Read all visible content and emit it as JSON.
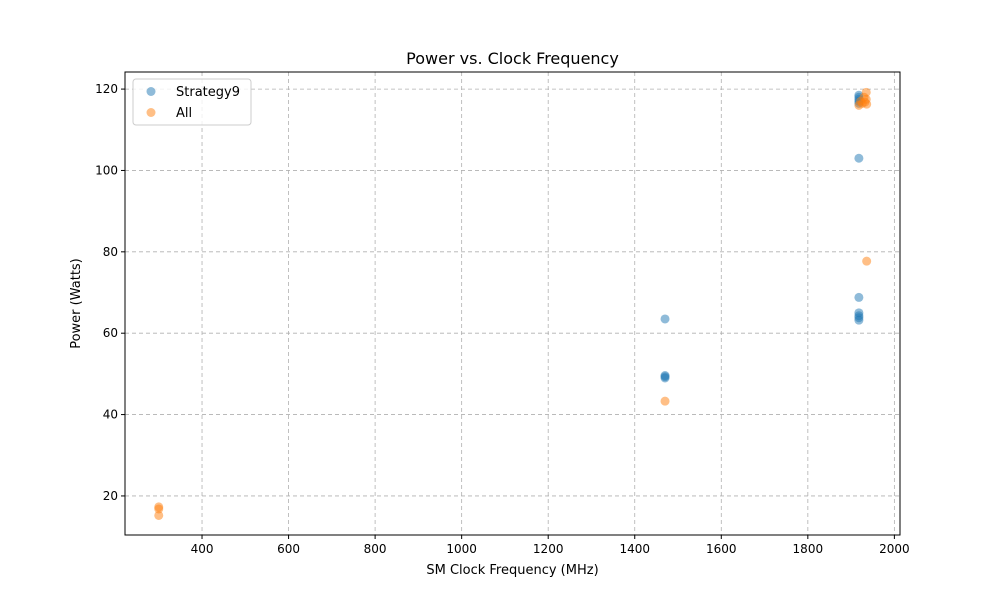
{
  "chart_data": {
    "type": "scatter",
    "title": "Power vs. Clock Frequency",
    "xlabel": "SM Clock Frequency (MHz)",
    "ylabel": "Power (Watts)",
    "xlim": [
      222,
      2013
    ],
    "ylim": [
      10.4,
      124.2
    ],
    "xticks": [
      400,
      600,
      800,
      1000,
      1200,
      1400,
      1600,
      1800,
      2000
    ],
    "yticks": [
      20,
      40,
      60,
      80,
      100,
      120
    ],
    "grid": true,
    "legend_position": "top-left",
    "series": [
      {
        "name": "Strategy9",
        "color": "#1f77b4",
        "points": [
          {
            "x": 1470,
            "y": 63.5
          },
          {
            "x": 1470,
            "y": 49.6
          },
          {
            "x": 1470,
            "y": 49.3
          },
          {
            "x": 1470,
            "y": 49.0
          },
          {
            "x": 1918,
            "y": 118.5
          },
          {
            "x": 1918,
            "y": 118.0
          },
          {
            "x": 1918,
            "y": 117.5
          },
          {
            "x": 1918,
            "y": 117.0
          },
          {
            "x": 1918,
            "y": 116.5
          },
          {
            "x": 1918,
            "y": 103.0
          },
          {
            "x": 1918,
            "y": 68.8
          },
          {
            "x": 1918,
            "y": 65.0
          },
          {
            "x": 1918,
            "y": 64.3
          },
          {
            "x": 1918,
            "y": 63.8
          },
          {
            "x": 1918,
            "y": 63.2
          }
        ]
      },
      {
        "name": "All",
        "color": "#ff7f0e",
        "points": [
          {
            "x": 300,
            "y": 17.3
          },
          {
            "x": 300,
            "y": 16.8
          },
          {
            "x": 300,
            "y": 15.2
          },
          {
            "x": 1470,
            "y": 43.3
          },
          {
            "x": 1918,
            "y": 116.0
          },
          {
            "x": 1922,
            "y": 117.0
          },
          {
            "x": 1926,
            "y": 116.5
          },
          {
            "x": 1930,
            "y": 118.0
          },
          {
            "x": 1932,
            "y": 116.8
          },
          {
            "x": 1935,
            "y": 119.2
          },
          {
            "x": 1935,
            "y": 117.5
          },
          {
            "x": 1936,
            "y": 116.3
          },
          {
            "x": 1936,
            "y": 77.7
          }
        ]
      }
    ]
  }
}
